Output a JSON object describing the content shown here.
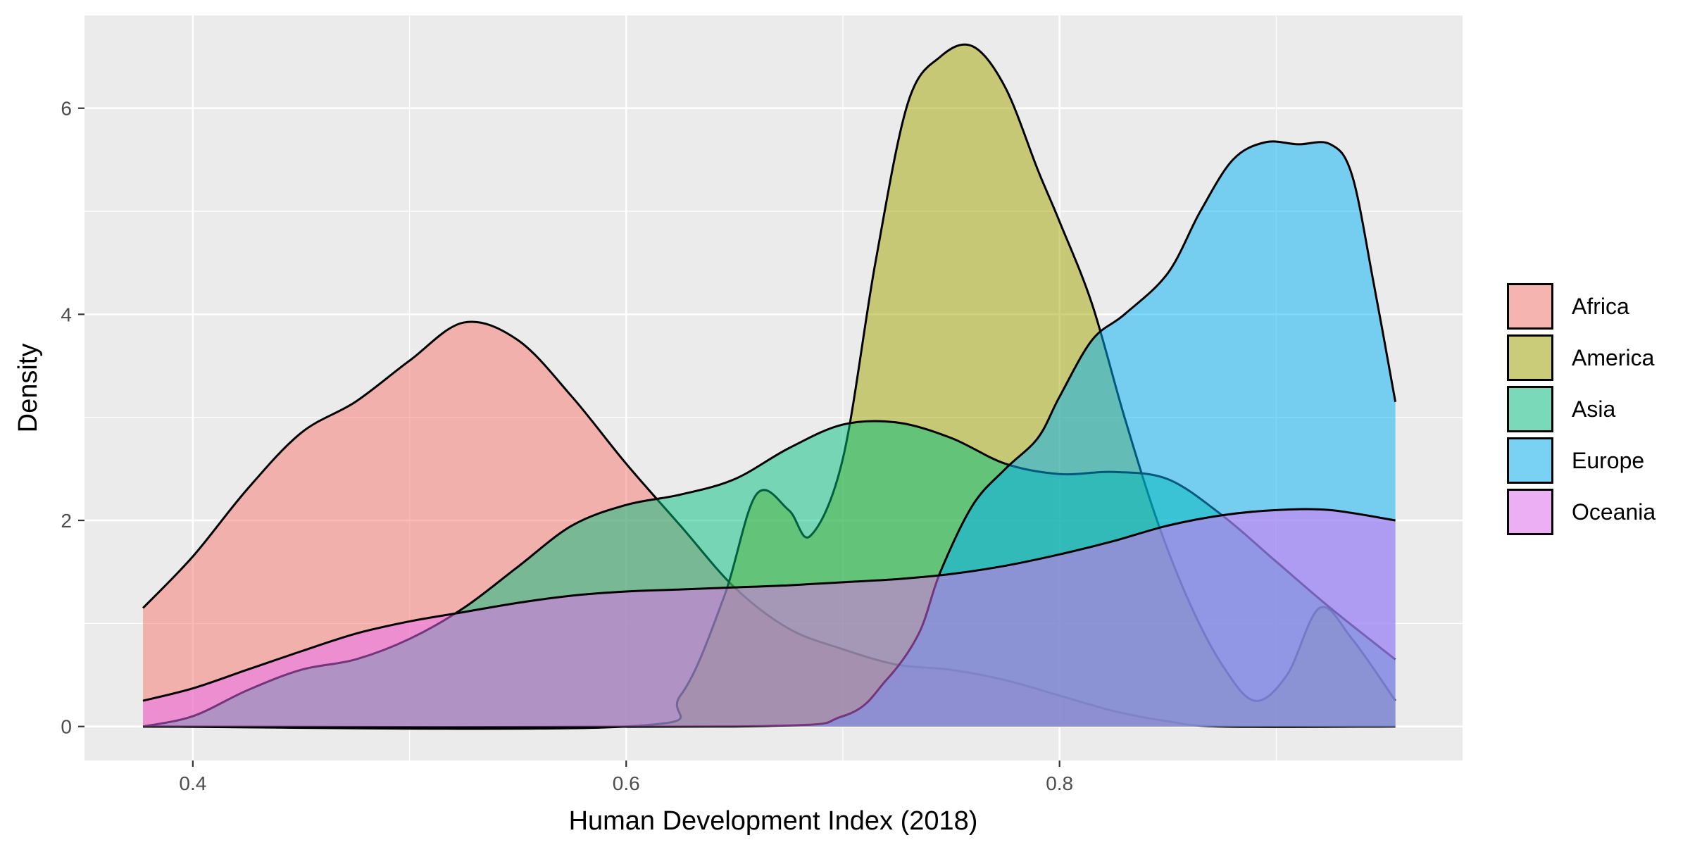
{
  "chart_data": {
    "type": "area",
    "subtype": "density",
    "title": "",
    "xlabel": "Human Development Index (2018)",
    "ylabel": "Density",
    "xlim": [
      0.35,
      0.986
    ],
    "ylim": [
      -0.33,
      6.9
    ],
    "x_ticks": [
      0.4,
      0.6,
      0.8
    ],
    "x_tick_labels": [
      "0.4",
      "0.6",
      "0.8"
    ],
    "y_ticks": [
      0,
      2,
      4,
      6
    ],
    "y_tick_labels": [
      "0",
      "2",
      "4",
      "6"
    ],
    "grid": true,
    "legend_position": "right",
    "fill_opacity": 0.5,
    "series": [
      {
        "name": "Africa",
        "color": "#F8766D",
        "points": [
          [
            0.377,
            1.15
          ],
          [
            0.4,
            1.65
          ],
          [
            0.425,
            2.3
          ],
          [
            0.45,
            2.85
          ],
          [
            0.475,
            3.15
          ],
          [
            0.5,
            3.55
          ],
          [
            0.525,
            3.92
          ],
          [
            0.55,
            3.75
          ],
          [
            0.575,
            3.2
          ],
          [
            0.6,
            2.55
          ],
          [
            0.625,
            1.95
          ],
          [
            0.65,
            1.35
          ],
          [
            0.675,
            0.95
          ],
          [
            0.7,
            0.75
          ],
          [
            0.725,
            0.6
          ],
          [
            0.75,
            0.55
          ],
          [
            0.775,
            0.45
          ],
          [
            0.8,
            0.3
          ],
          [
            0.825,
            0.15
          ],
          [
            0.85,
            0.05
          ],
          [
            0.875,
            0.0
          ],
          [
            0.955,
            0.0
          ]
        ]
      },
      {
        "name": "America",
        "color": "#A3A500",
        "points": [
          [
            0.377,
            0.0
          ],
          [
            0.6,
            0.0
          ],
          [
            0.625,
            0.3
          ],
          [
            0.645,
            1.25
          ],
          [
            0.66,
            2.25
          ],
          [
            0.675,
            2.1
          ],
          [
            0.685,
            1.85
          ],
          [
            0.7,
            2.6
          ],
          [
            0.715,
            4.5
          ],
          [
            0.73,
            6.05
          ],
          [
            0.745,
            6.5
          ],
          [
            0.76,
            6.6
          ],
          [
            0.775,
            6.2
          ],
          [
            0.79,
            5.4
          ],
          [
            0.8,
            4.9
          ],
          [
            0.815,
            4.1
          ],
          [
            0.83,
            3.0
          ],
          [
            0.845,
            2.0
          ],
          [
            0.86,
            1.2
          ],
          [
            0.875,
            0.6
          ],
          [
            0.89,
            0.25
          ],
          [
            0.905,
            0.5
          ],
          [
            0.92,
            1.15
          ],
          [
            0.935,
            0.85
          ],
          [
            0.955,
            0.25
          ]
        ]
      },
      {
        "name": "Asia",
        "color": "#00BF7D",
        "points": [
          [
            0.377,
            0.0
          ],
          [
            0.4,
            0.1
          ],
          [
            0.425,
            0.35
          ],
          [
            0.45,
            0.55
          ],
          [
            0.475,
            0.65
          ],
          [
            0.5,
            0.85
          ],
          [
            0.525,
            1.15
          ],
          [
            0.55,
            1.55
          ],
          [
            0.575,
            1.95
          ],
          [
            0.6,
            2.15
          ],
          [
            0.625,
            2.25
          ],
          [
            0.65,
            2.4
          ],
          [
            0.675,
            2.7
          ],
          [
            0.7,
            2.93
          ],
          [
            0.725,
            2.95
          ],
          [
            0.75,
            2.8
          ],
          [
            0.775,
            2.55
          ],
          [
            0.8,
            2.45
          ],
          [
            0.825,
            2.47
          ],
          [
            0.85,
            2.4
          ],
          [
            0.875,
            2.05
          ],
          [
            0.9,
            1.6
          ],
          [
            0.925,
            1.15
          ],
          [
            0.955,
            0.65
          ]
        ]
      },
      {
        "name": "Europe",
        "color": "#00B0F6",
        "points": [
          [
            0.377,
            0.0
          ],
          [
            0.65,
            0.0
          ],
          [
            0.7,
            0.1
          ],
          [
            0.72,
            0.45
          ],
          [
            0.735,
            0.9
          ],
          [
            0.745,
            1.5
          ],
          [
            0.76,
            2.15
          ],
          [
            0.775,
            2.5
          ],
          [
            0.79,
            2.8
          ],
          [
            0.8,
            3.2
          ],
          [
            0.815,
            3.75
          ],
          [
            0.83,
            4.0
          ],
          [
            0.85,
            4.4
          ],
          [
            0.865,
            5.0
          ],
          [
            0.88,
            5.5
          ],
          [
            0.895,
            5.67
          ],
          [
            0.91,
            5.65
          ],
          [
            0.925,
            5.65
          ],
          [
            0.935,
            5.35
          ],
          [
            0.945,
            4.3
          ],
          [
            0.955,
            3.15
          ]
        ]
      },
      {
        "name": "Oceania",
        "color": "#E76BF3",
        "points": [
          [
            0.377,
            0.25
          ],
          [
            0.4,
            0.37
          ],
          [
            0.425,
            0.55
          ],
          [
            0.45,
            0.73
          ],
          [
            0.475,
            0.9
          ],
          [
            0.5,
            1.02
          ],
          [
            0.525,
            1.11
          ],
          [
            0.55,
            1.2
          ],
          [
            0.575,
            1.27
          ],
          [
            0.6,
            1.31
          ],
          [
            0.625,
            1.33
          ],
          [
            0.65,
            1.35
          ],
          [
            0.675,
            1.37
          ],
          [
            0.7,
            1.4
          ],
          [
            0.725,
            1.43
          ],
          [
            0.75,
            1.48
          ],
          [
            0.775,
            1.56
          ],
          [
            0.8,
            1.67
          ],
          [
            0.825,
            1.8
          ],
          [
            0.85,
            1.95
          ],
          [
            0.875,
            2.05
          ],
          [
            0.9,
            2.1
          ],
          [
            0.925,
            2.1
          ],
          [
            0.955,
            2.0
          ]
        ]
      }
    ]
  }
}
